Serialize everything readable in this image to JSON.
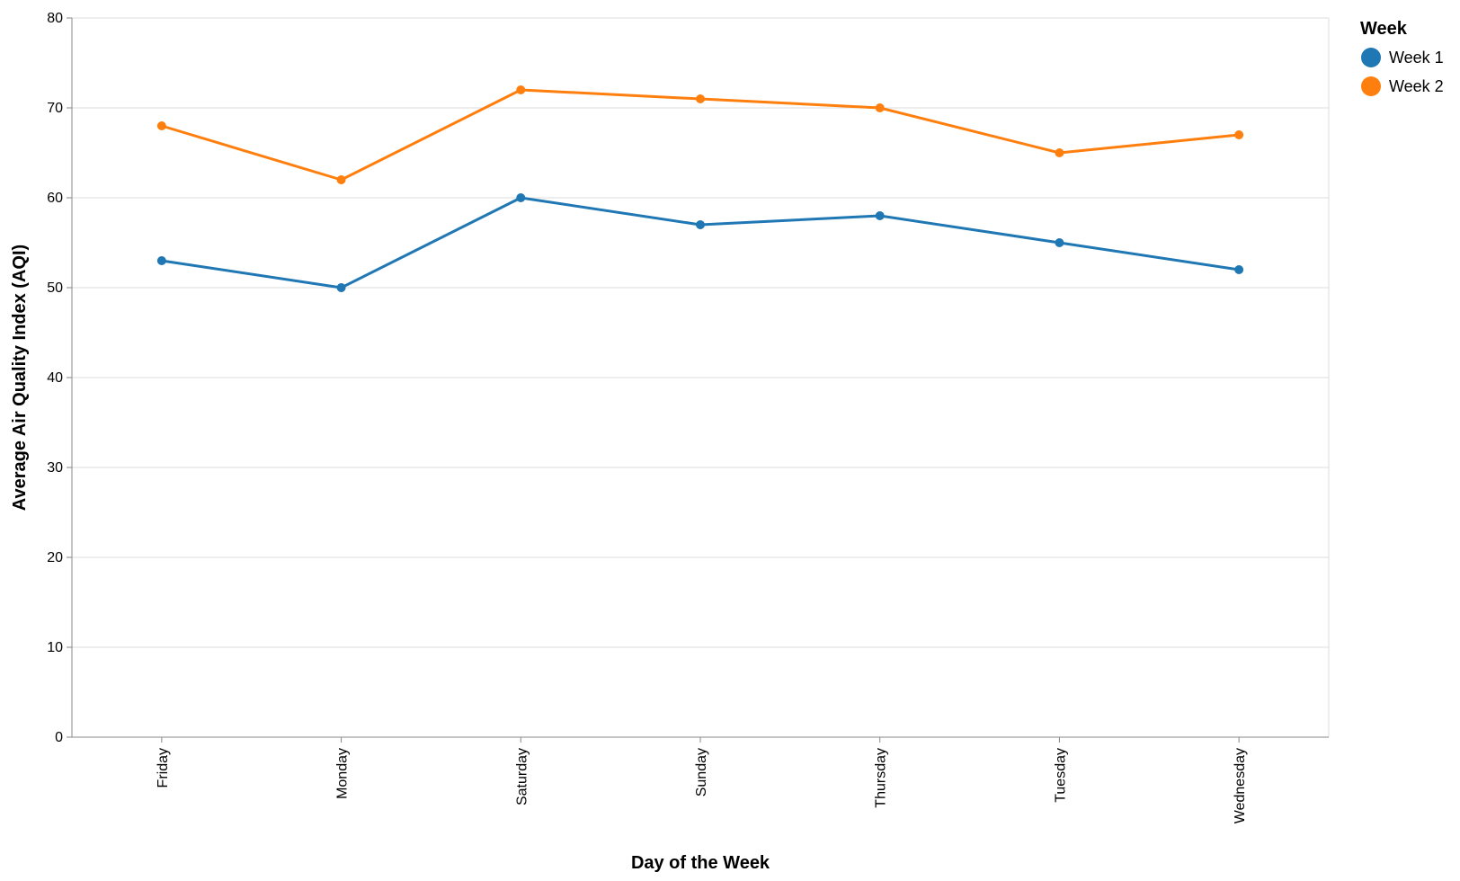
{
  "chart_data": {
    "type": "line",
    "xlabel": "Day of the Week",
    "ylabel": "Average Air Quality Index (AQI)",
    "categories": [
      "Friday",
      "Monday",
      "Saturday",
      "Sunday",
      "Thursday",
      "Tuesday",
      "Wednesday"
    ],
    "ylim": [
      0,
      80
    ],
    "yticks": [
      0,
      10,
      20,
      30,
      40,
      50,
      60,
      70,
      80
    ],
    "grid": true,
    "legend": {
      "title": "Week",
      "placement": "top-right"
    },
    "series": [
      {
        "name": "Week 1",
        "color": "#1f77b4",
        "values": [
          53,
          50,
          60,
          57,
          58,
          55,
          52
        ]
      },
      {
        "name": "Week 2",
        "color": "#ff7f0e",
        "values": [
          68,
          62,
          72,
          71,
          70,
          65,
          67
        ]
      }
    ]
  }
}
